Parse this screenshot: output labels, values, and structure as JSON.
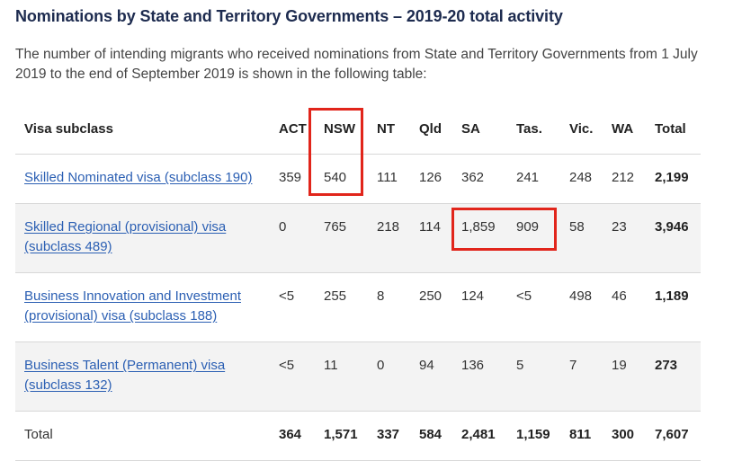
{
  "title": "Nominations by State and Territory Governments – 2019-20 total activity",
  "intro": "The number of intending migrants who received nominations from State and Territory Governments from 1 July 2019 to the end of September 2019 is shown in the following table:",
  "table": {
    "headers": [
      "Visa subclass",
      "ACT",
      "NSW",
      "NT",
      "Qld",
      "SA",
      "Tas.",
      "Vic.",
      "WA",
      "Total"
    ],
    "rows": [
      {
        "label_lines": [
          "Skilled Nominated visa (subclass 190)"
        ],
        "values": [
          "359",
          "540",
          "111",
          "126",
          "362",
          "241",
          "248",
          "212",
          "2,199"
        ]
      },
      {
        "label_lines": [
          "Skilled Regional (provisional) visa",
          "(subclass 489)"
        ],
        "values": [
          "0",
          "765",
          "218",
          "114",
          "1,859",
          "909",
          "58",
          "23",
          "3,946"
        ]
      },
      {
        "label_lines": [
          "Business Innovation and Investment",
          "(provisional) visa (subclass 188)"
        ],
        "values": [
          "<5",
          "255",
          "8",
          "250",
          "124",
          "<5",
          "498",
          "46",
          "1,189"
        ]
      },
      {
        "label_lines": [
          "Business Talent (Permanent) visa",
          "(subclass 132)"
        ],
        "values": [
          "<5",
          "11",
          "0",
          "94",
          "136",
          "5",
          "7",
          "19",
          "273"
        ]
      }
    ],
    "total": {
      "label": "Total",
      "values": [
        "364",
        "1,571",
        "337",
        "584",
        "2,481",
        "1,159",
        "811",
        "300",
        "7,607"
      ]
    }
  },
  "colors": {
    "highlight": "#e1251b",
    "link": "#2b5fb3",
    "title": "#1d2b4f",
    "row_shade": "#f3f3f3"
  }
}
